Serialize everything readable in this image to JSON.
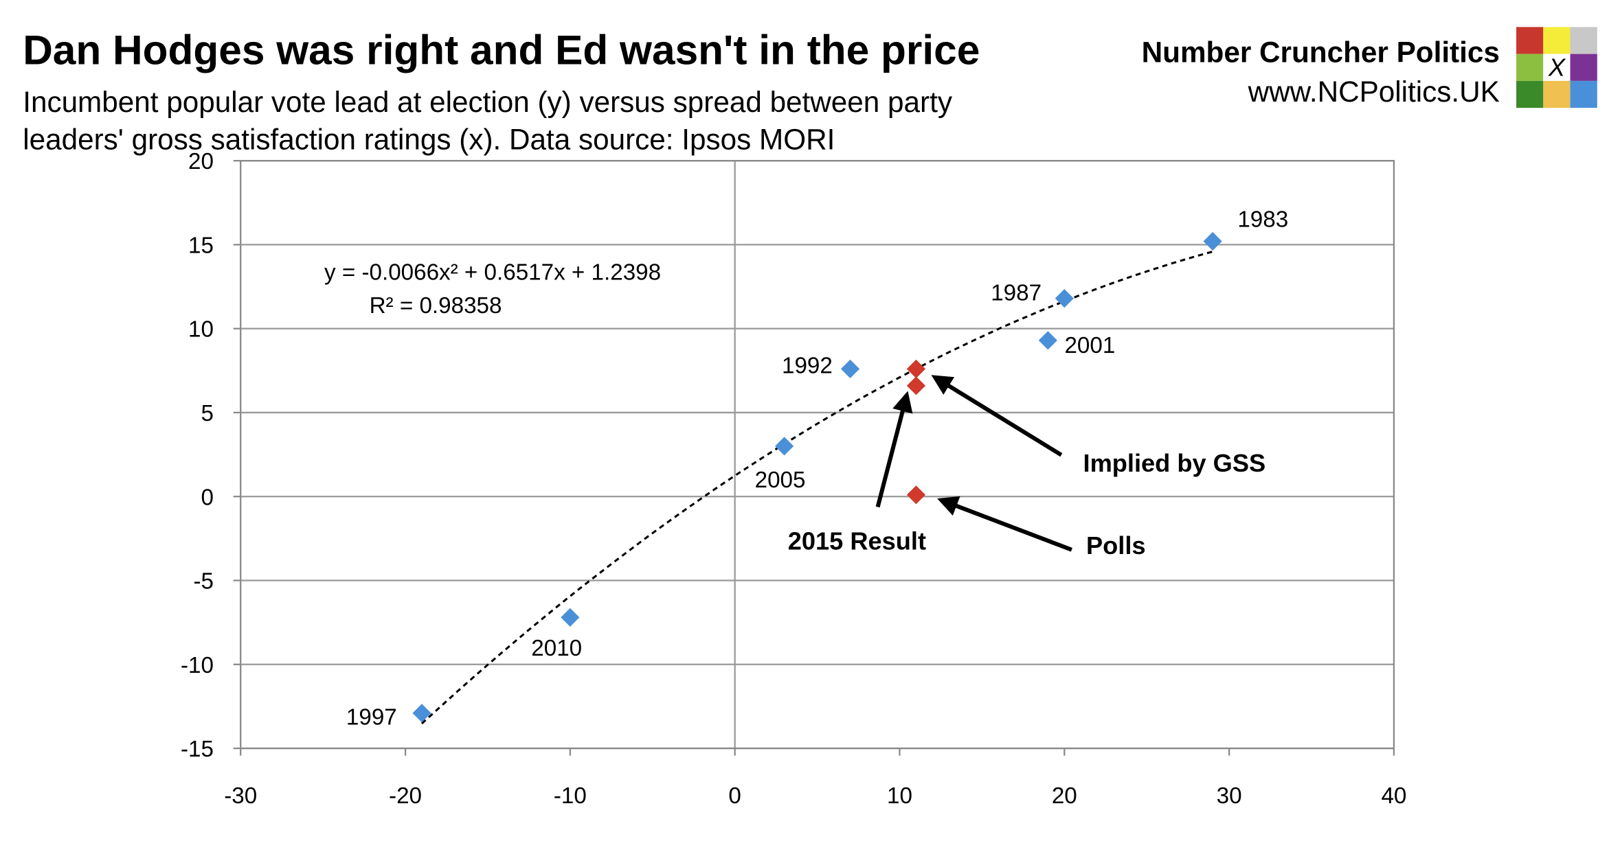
{
  "chart_data": {
    "type": "scatter",
    "title": "Dan Hodges was right and Ed wasn't in the price",
    "subtitle": [
      "Incumbent popular vote lead at election (y) versus spread between party",
      "leaders' gross satisfaction ratings (x). Data source: Ipsos MORI"
    ],
    "brand": {
      "name": "Number Cruncher Politics",
      "url": "www.NCPolitics.UK",
      "logo_mark": "X"
    },
    "xlim": [
      -30,
      40
    ],
    "xticks": [
      -30,
      -20,
      -10,
      0,
      10,
      20,
      30,
      40
    ],
    "ylim": [
      -15,
      20
    ],
    "yticks": [
      -15,
      -10,
      -5,
      0,
      5,
      10,
      15,
      20
    ],
    "grid": true,
    "series": [
      {
        "color": "#4a90d9",
        "x": [
          29,
          20,
          19,
          7,
          3,
          -10,
          -19
        ],
        "values": [
          15.2,
          11.8,
          9.3,
          7.6,
          3.0,
          -7.2,
          -12.9
        ],
        "labels": [
          "1983",
          "1987",
          "2001",
          "1992",
          "2005",
          "2010",
          "1997"
        ]
      },
      {
        "color": "#d0392b",
        "x": [
          11,
          11,
          11
        ],
        "values": [
          6.6,
          7.6,
          0.1
        ],
        "labels": [
          "2015 Result",
          "Implied by GSS",
          "Polls"
        ]
      }
    ],
    "trendline": {
      "equation": "y = -0.0066x² + 0.6517x + 1.2398",
      "r2": "R² = 0.98358"
    }
  }
}
